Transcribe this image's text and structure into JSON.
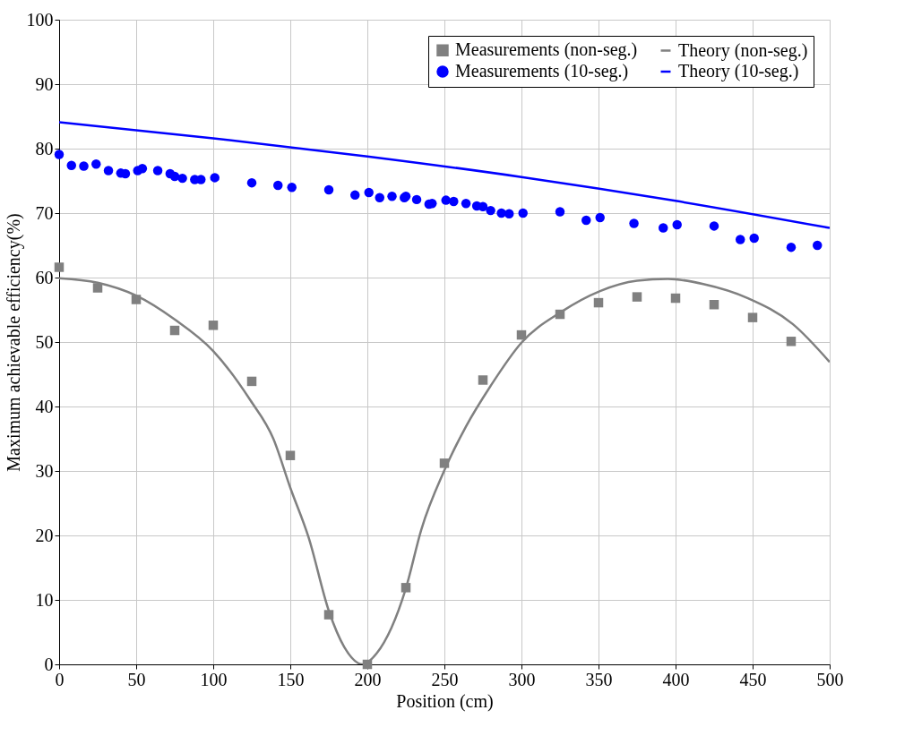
{
  "chart_data": {
    "type": "scatter",
    "xlabel": "Position (cm)",
    "ylabel": "Maximum achievable efficiency(%)",
    "xlim": [
      0,
      500
    ],
    "xticks": [
      0,
      50,
      100,
      150,
      200,
      250,
      300,
      350,
      400,
      450,
      500
    ],
    "ylim": [
      0,
      100
    ],
    "yticks": [
      0,
      10,
      20,
      30,
      40,
      50,
      60,
      70,
      80,
      90,
      100
    ],
    "grid": true,
    "legend": "top right",
    "series": [
      {
        "name": "Measurements (non-seg.)",
        "marker": "square",
        "color": "#808080",
        "x": [
          0,
          25,
          50,
          75,
          100,
          125,
          150,
          175,
          200,
          225,
          250,
          275,
          300,
          325,
          350,
          375,
          400,
          425,
          450,
          475
        ],
        "values": [
          61.6,
          58.4,
          56.6,
          51.8,
          52.6,
          43.9,
          32.4,
          7.7,
          0,
          11.9,
          31.2,
          44.1,
          51.1,
          54.3,
          56.1,
          57.0,
          56.8,
          55.8,
          53.8,
          50.1
        ]
      },
      {
        "name": "Theory (non-seg.)",
        "type": "line",
        "marker": "none",
        "line_style": "solid",
        "color": "#808080",
        "x": [
          0,
          25,
          50,
          75,
          100,
          124,
          139,
          150,
          162,
          175,
          185,
          197,
          206,
          225,
          235,
          250,
          264,
          280,
          300,
          326,
          351,
          375,
          395,
          418,
          447,
          476,
          500
        ],
        "values": [
          59.9,
          59.2,
          57.2,
          53.5,
          48.6,
          41.0,
          35.0,
          27.4,
          19.6,
          8.3,
          2.7,
          0,
          1.7,
          11.8,
          20.9,
          30.1,
          36.9,
          43.2,
          49.9,
          54.7,
          57.9,
          59.5,
          59.8,
          59.0,
          56.8,
          52.8,
          46.9
        ]
      },
      {
        "name": "Measurements (10-seg.)",
        "marker": "circle",
        "color": "#0000ff",
        "x": [
          0,
          8,
          16,
          24,
          32,
          40,
          43,
          51,
          54,
          64,
          72,
          75,
          80,
          88,
          92,
          101,
          125,
          142,
          151,
          175,
          192,
          201,
          208,
          216,
          224,
          225,
          232,
          240,
          242,
          251,
          256,
          264,
          271,
          275,
          280,
          287,
          292,
          301,
          325,
          342,
          351,
          373,
          392,
          401,
          425,
          442,
          451,
          475,
          492
        ],
        "values": [
          79.1,
          77.4,
          77.3,
          77.6,
          76.6,
          76.2,
          76.1,
          76.6,
          76.9,
          76.6,
          76.1,
          75.7,
          75.4,
          75.2,
          75.2,
          75.5,
          74.7,
          74.3,
          74.0,
          73.6,
          72.8,
          73.2,
          72.4,
          72.6,
          72.4,
          72.6,
          72.1,
          71.4,
          71.5,
          72.0,
          71.8,
          71.5,
          71.1,
          71.0,
          70.4,
          70.0,
          69.9,
          70.0,
          70.2,
          68.9,
          69.3,
          68.4,
          67.7,
          68.2,
          68.0,
          65.9,
          66.1,
          64.7,
          65.0
        ]
      },
      {
        "name": "Theory (10-seg.)",
        "type": "line",
        "marker": "none",
        "line_style": "solid",
        "color": "#0000ff",
        "x": [
          0,
          100,
          200,
          300,
          400,
          500
        ],
        "values": [
          84.1,
          81.6,
          78.8,
          75.6,
          71.9,
          67.7
        ]
      }
    ]
  }
}
